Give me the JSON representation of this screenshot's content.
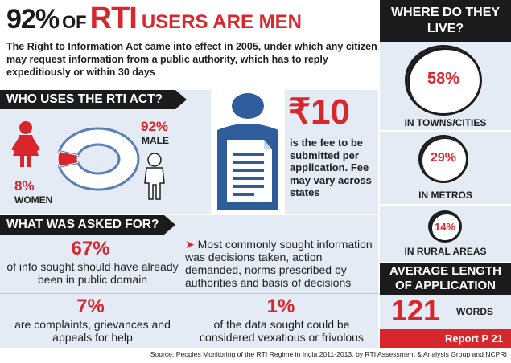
{
  "title": {
    "pct": "92%",
    "of": "OF",
    "rti": "RTI",
    "rest": "USERS ARE MEN"
  },
  "intro": "The Right to Information Act came into effect in 2005, under which any citizen may request information from a public authority, which has to reply expeditiously or within 30 days",
  "who": {
    "heading": "WHO USES THE RTI ACT?",
    "male_pct": "92%",
    "male_label": "MALE",
    "female_pct": "8%",
    "female_label": "WOMEN",
    "male_share": 0.92,
    "colors": {
      "female": "#d7272d",
      "male": "#5a7fb6"
    }
  },
  "fee": {
    "amount": "₹10",
    "text": "is the fee to be submitted per application. Fee may vary across states"
  },
  "asked": {
    "heading": "WHAT WAS ASKED FOR?",
    "stats": [
      {
        "value": "67%",
        "text": "of info sought should have already been in public domain"
      },
      {
        "value": "7%",
        "text": "are complaints, grievances and appeals for help"
      },
      {
        "value": "1%",
        "text": "of the data sought could be considered vexatious or frivolous"
      }
    ],
    "common_arrow": "➤",
    "common_text": "Most commonly sought information was decisions taken, action demanded, norms prescribed by authorities and basis of decisions"
  },
  "where": {
    "heading": "WHERE DO THEY LIVE?",
    "items": [
      {
        "value": "58%",
        "label": "IN TOWNS/CITIES"
      },
      {
        "value": "29%",
        "label": "IN METROS"
      },
      {
        "value": "14%",
        "label": "IN RURAL AREAS"
      }
    ]
  },
  "avg": {
    "heading": "AVERAGE LENGTH OF APPLICATION",
    "value": "121",
    "unit": "WORDS"
  },
  "report": "Report P 21",
  "source": "Source: Peoples Monitoring of the RTI Regime in India 2011-2013, by RTI Assessment & Analysis Group and NCPRI",
  "colors": {
    "accent_red": "#d7272d",
    "panel_blue": "#e4ebf5",
    "band_black": "#1b1b1b",
    "document_blue": "#2f5d9c"
  }
}
